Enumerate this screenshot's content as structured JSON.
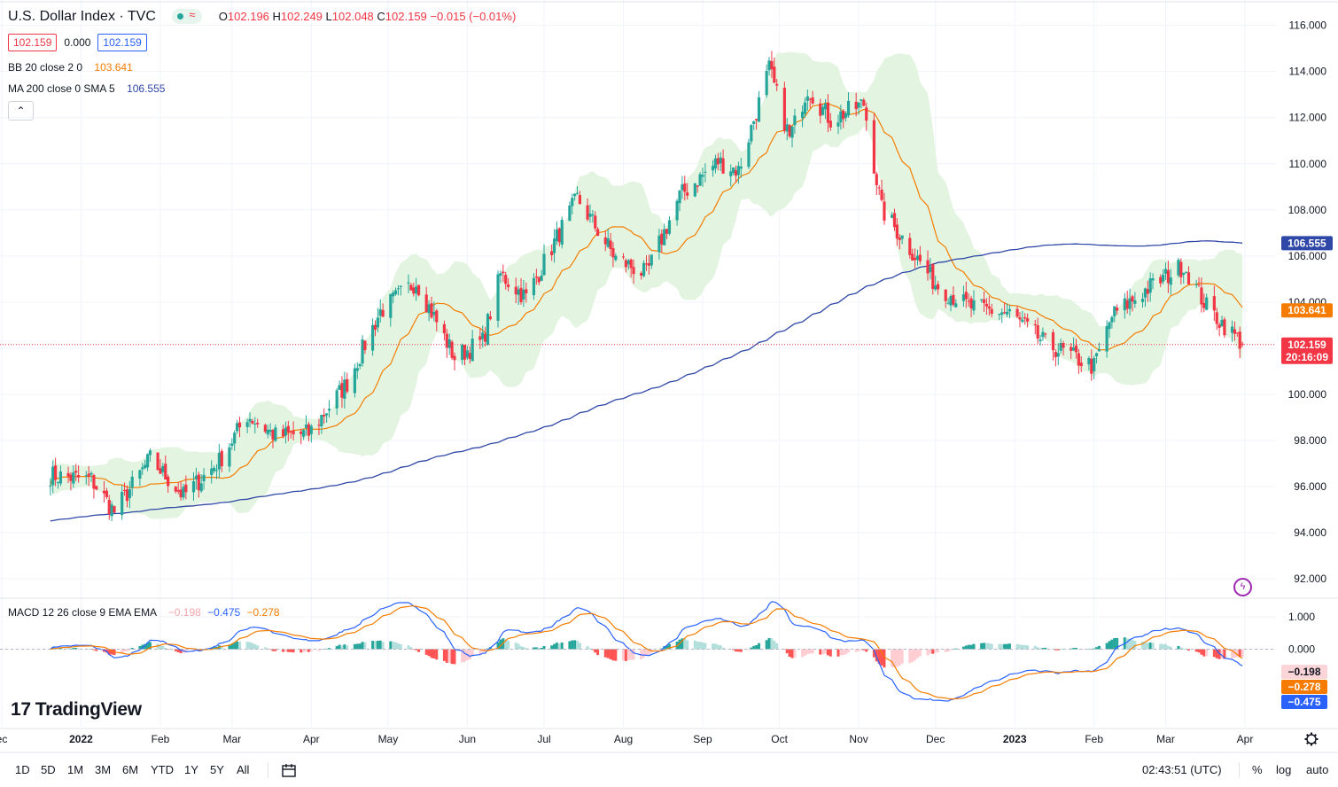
{
  "header": {
    "symbol": "U.S. Dollar Index · TVC",
    "ohlc": [
      {
        "k": "O",
        "v": "102.196"
      },
      {
        "k": "H",
        "v": "102.249"
      },
      {
        "k": "L",
        "v": "102.048"
      },
      {
        "k": "C",
        "v": "102.159"
      }
    ],
    "change": "−0.015 (−0.01%)",
    "bid": "102.159",
    "spread": "0.000",
    "ask": "102.159",
    "bb_label": "BB 20 close 2 0",
    "bb_value": "103.641",
    "ma_label": "MA 200 close 0 SMA 5",
    "ma_value": "106.555",
    "macd_label": "MACD 12 26 close 9 EMA EMA",
    "macd_hist": "−0.198",
    "macd_line": "−0.475",
    "macd_signal": "−0.278"
  },
  "colors": {
    "up": "#26a69a",
    "down": "#f23645",
    "bb_mid": "#f57c00",
    "bb_fill": "#e3f5e1",
    "ma": "#2f47a6",
    "macd": "#2962ff",
    "signal": "#f57c00"
  },
  "chart_data": {
    "type": "candlestick",
    "price_axis": {
      "ticks": [
        "116.000",
        "114.000",
        "112.000",
        "110.000",
        "108.000",
        "106.000",
        "104.000",
        "102.000",
        "100.000",
        "98.000",
        "96.000",
        "94.000",
        "92.000"
      ],
      "tick_values": [
        116,
        114,
        112,
        110,
        108,
        106,
        104,
        102,
        100,
        98,
        96,
        94,
        92
      ],
      "range": [
        91.2,
        117.1
      ]
    },
    "macd_axis": {
      "ticks": [
        "1.000",
        "0.000"
      ],
      "tick_values": [
        1.0,
        0.0
      ],
      "range": [
        -2.4,
        1.55
      ]
    },
    "time_axis": {
      "labels": [
        "ec",
        "2022",
        "Feb",
        "Mar",
        "Apr",
        "May",
        "Jun",
        "Jul",
        "Aug",
        "Sep",
        "Oct",
        "Nov",
        "Dec",
        "2023",
        "Feb",
        "Mar",
        "Apr"
      ],
      "dates": [
        "2021-12-01",
        "2022-01-01",
        "2022-02-01",
        "2022-03-01",
        "2022-04-01",
        "2022-05-01",
        "2022-06-01",
        "2022-07-01",
        "2022-08-01",
        "2022-09-01",
        "2022-10-01",
        "2022-11-01",
        "2022-12-01",
        "2023-01-01",
        "2023-02-01",
        "2023-03-01",
        "2023-04-01"
      ]
    },
    "close_trend": [
      [
        "2021-12-20",
        96.5
      ],
      [
        "2022-01-05",
        96.3
      ],
      [
        "2022-01-14",
        94.9
      ],
      [
        "2022-01-28",
        97.2
      ],
      [
        "2022-02-10",
        95.6
      ],
      [
        "2022-02-24",
        97.1
      ],
      [
        "2022-03-07",
        99.1
      ],
      [
        "2022-03-18",
        98.2
      ],
      [
        "2022-03-31",
        98.3
      ],
      [
        "2022-04-15",
        100.5
      ],
      [
        "2022-04-28",
        103.6
      ],
      [
        "2022-05-12",
        104.9
      ],
      [
        "2022-05-27",
        101.6
      ],
      [
        "2022-06-07",
        102.3
      ],
      [
        "2022-06-14",
        105.2
      ],
      [
        "2022-06-24",
        104.2
      ],
      [
        "2022-07-06",
        106.8
      ],
      [
        "2022-07-14",
        108.5
      ],
      [
        "2022-07-29",
        105.9
      ],
      [
        "2022-08-10",
        105.2
      ],
      [
        "2022-08-23",
        108.6
      ],
      [
        "2022-09-07",
        110.1
      ],
      [
        "2022-09-15",
        109.7
      ],
      [
        "2022-09-27",
        114.1
      ],
      [
        "2022-10-05",
        111.1
      ],
      [
        "2022-10-12",
        113.3
      ],
      [
        "2022-10-21",
        111.9
      ],
      [
        "2022-11-03",
        112.6
      ],
      [
        "2022-11-10",
        108.0
      ],
      [
        "2022-11-18",
        106.8
      ],
      [
        "2022-12-01",
        104.8
      ],
      [
        "2022-12-14",
        103.8
      ],
      [
        "2022-12-30",
        103.5
      ],
      [
        "2023-01-13",
        102.2
      ],
      [
        "2023-02-01",
        101.2
      ],
      [
        "2023-02-08",
        103.4
      ],
      [
        "2023-02-22",
        104.6
      ],
      [
        "2023-03-08",
        105.6
      ],
      [
        "2023-03-17",
        103.8
      ],
      [
        "2023-03-31",
        102.2
      ]
    ],
    "current_price": 102.159,
    "current_price_label": "102.159",
    "countdown": "20:16:09",
    "bb_mid_label": "103.641",
    "ma_label": "106.555",
    "macd_hist_label": "−0.198",
    "macd_signal_label": "−0.278",
    "macd_line_label": "−0.475",
    "grid": true
  },
  "bottombar": {
    "timeframes": [
      "1D",
      "5D",
      "1M",
      "3M",
      "6M",
      "YTD",
      "1Y",
      "5Y",
      "All"
    ],
    "clock": "02:43:51 (UTC)",
    "pct": "%",
    "log": "log",
    "auto": "auto"
  },
  "branding": "TradingView"
}
